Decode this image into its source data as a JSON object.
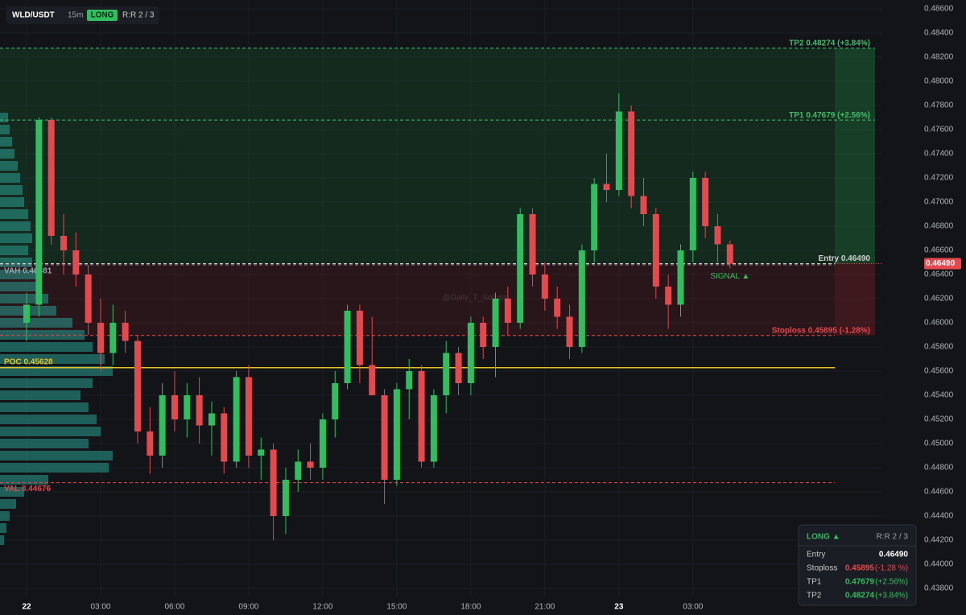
{
  "header": {
    "symbol": "WLD/USDT",
    "timeframe": "15m",
    "side": "LONG",
    "rr": "R:R 2 / 3"
  },
  "watermark": "@Daily_T_Setups",
  "panel": {
    "side": "LONG ▲",
    "rr": "R:R 2 / 3",
    "rows": [
      {
        "label": "Entry",
        "value": "0.46490"
      },
      {
        "label": "Stoploss",
        "value": "0.45895",
        "change": "(-1.28 %)"
      },
      {
        "label": "TP1",
        "value": "0.47679",
        "change": "(+2.56%)"
      },
      {
        "label": "TP2",
        "value": "0.48274",
        "change": "(+3.84%)"
      }
    ]
  },
  "chart_data": {
    "type": "candlestick",
    "up_color": "#2fbf5f",
    "down_color": "#e5484d",
    "grid": true,
    "categories": [
      "22",
      null,
      null,
      null,
      null,
      null,
      "03:00",
      null,
      null,
      null,
      null,
      null,
      "06:00",
      null,
      null,
      null,
      null,
      null,
      "09:00",
      null,
      null,
      null,
      null,
      null,
      "12:00",
      null,
      null,
      null,
      null,
      null,
      "15:00",
      null,
      null,
      null,
      null,
      null,
      "18:00",
      null,
      null,
      null,
      null,
      null,
      "21:00",
      null,
      null,
      null,
      null,
      null,
      "23",
      null,
      null,
      null,
      null,
      null,
      "03:00",
      null,
      null,
      null
    ],
    "open": [
      0.46,
      0.4615,
      0.4768,
      0.4672,
      0.466,
      0.464,
      0.46,
      0.4575,
      0.46,
      0.4585,
      0.451,
      0.449,
      0.454,
      0.452,
      0.454,
      0.4515,
      0.4525,
      0.4485,
      0.4555,
      0.449,
      0.4495,
      0.444,
      0.447,
      0.4485,
      0.448,
      0.452,
      0.455,
      0.461,
      0.4565,
      0.454,
      0.447,
      0.4545,
      0.456,
      0.4485,
      0.454,
      0.4575,
      0.455,
      0.46,
      0.458,
      0.462,
      0.46,
      0.469,
      0.464,
      0.462,
      0.4605,
      0.458,
      0.466,
      0.4715,
      0.471,
      0.4775,
      0.4705,
      0.469,
      0.463,
      0.4615,
      0.466,
      0.472,
      0.468,
      0.4665
    ],
    "high": [
      0.4625,
      0.477,
      0.477,
      0.469,
      0.4675,
      0.4648,
      0.462,
      0.4615,
      0.461,
      0.459,
      0.453,
      0.455,
      0.456,
      0.455,
      0.4555,
      0.4535,
      0.453,
      0.456,
      0.4565,
      0.4505,
      0.45,
      0.448,
      0.4495,
      0.45,
      0.4525,
      0.456,
      0.4615,
      0.4615,
      0.4605,
      0.4545,
      0.455,
      0.457,
      0.4565,
      0.4545,
      0.4585,
      0.458,
      0.4605,
      0.4605,
      0.4625,
      0.463,
      0.4695,
      0.4695,
      0.465,
      0.463,
      0.4615,
      0.4665,
      0.472,
      0.474,
      0.479,
      0.478,
      0.472,
      0.4695,
      0.464,
      0.4665,
      0.4725,
      0.4725,
      0.469,
      0.4668
    ],
    "low": [
      0.4585,
      0.4605,
      0.4665,
      0.464,
      0.463,
      0.459,
      0.456,
      0.4565,
      0.4575,
      0.45,
      0.4475,
      0.448,
      0.451,
      0.4505,
      0.45,
      0.449,
      0.4475,
      0.448,
      0.448,
      0.447,
      0.442,
      0.4425,
      0.446,
      0.447,
      0.447,
      0.4505,
      0.4545,
      0.455,
      0.454,
      0.445,
      0.4465,
      0.452,
      0.448,
      0.448,
      0.4525,
      0.454,
      0.454,
      0.457,
      0.4555,
      0.459,
      0.4595,
      0.463,
      0.461,
      0.4595,
      0.457,
      0.4575,
      0.465,
      0.47,
      0.4705,
      0.4695,
      0.468,
      0.462,
      0.4595,
      0.4605,
      0.465,
      0.467,
      0.465,
      0.4645
    ],
    "close": [
      0.4615,
      0.4768,
      0.4672,
      0.466,
      0.464,
      0.46,
      0.4575,
      0.46,
      0.4585,
      0.451,
      0.449,
      0.454,
      0.452,
      0.454,
      0.4515,
      0.4525,
      0.4485,
      0.4555,
      0.449,
      0.4495,
      0.444,
      0.447,
      0.4485,
      0.448,
      0.452,
      0.455,
      0.461,
      0.4565,
      0.454,
      0.447,
      0.4545,
      0.456,
      0.4485,
      0.454,
      0.4575,
      0.455,
      0.46,
      0.458,
      0.462,
      0.46,
      0.469,
      0.464,
      0.462,
      0.4605,
      0.458,
      0.466,
      0.4715,
      0.471,
      0.4775,
      0.4705,
      0.469,
      0.463,
      0.4615,
      0.466,
      0.472,
      0.468,
      0.4665,
      0.4649
    ],
    "ylim": [
      0.438,
      0.486
    ],
    "yticks": [
      {
        "value": 0.486,
        "label": "0.48600"
      },
      {
        "value": 0.484,
        "label": "0.48400"
      },
      {
        "value": 0.482,
        "label": "0.48200"
      },
      {
        "value": 0.48,
        "label": "0.48000"
      },
      {
        "value": 0.478,
        "label": "0.47800"
      },
      {
        "value": 0.476,
        "label": "0.47600"
      },
      {
        "value": 0.474,
        "label": "0.47400"
      },
      {
        "value": 0.472,
        "label": "0.47200"
      },
      {
        "value": 0.47,
        "label": "0.47000"
      },
      {
        "value": 0.468,
        "label": "0.46800"
      },
      {
        "value": 0.466,
        "label": "0.46600"
      },
      {
        "value": 0.464,
        "label": "0.46400"
      },
      {
        "value": 0.462,
        "label": "0.46200"
      },
      {
        "value": 0.46,
        "label": "0.46000"
      },
      {
        "value": 0.458,
        "label": "0.45800"
      },
      {
        "value": 0.456,
        "label": "0.45600"
      },
      {
        "value": 0.454,
        "label": "0.45400"
      },
      {
        "value": 0.452,
        "label": "0.45200"
      },
      {
        "value": 0.45,
        "label": "0.45000"
      },
      {
        "value": 0.448,
        "label": "0.44800"
      },
      {
        "value": 0.446,
        "label": "0.44600"
      },
      {
        "value": 0.444,
        "label": "0.44400"
      },
      {
        "value": 0.442,
        "label": "0.44200"
      },
      {
        "value": 0.44,
        "label": "0.44000"
      },
      {
        "value": 0.438,
        "label": "0.43800"
      }
    ],
    "last_price": {
      "value": 0.4649,
      "label": "0.46490"
    },
    "signal": "SIGNAL ▲",
    "zones": [
      {
        "from": 0.4649,
        "to": 0.48274,
        "color": "#1f7a3a"
      },
      {
        "from": 0.4649,
        "to": 0.45895,
        "color": "#7a1f24"
      }
    ],
    "levels": [
      {
        "label": "TP2 0.48274 (+3.84%)",
        "value": 0.48274,
        "color": "#3fbf6a",
        "style": "dashed",
        "anchor": "right"
      },
      {
        "label": "TP1 0.47679 (+2.56%)",
        "value": 0.47679,
        "color": "#3fbf6a",
        "style": "dashed",
        "anchor": "right"
      },
      {
        "label": "Entry 0.46490",
        "value": 0.4649,
        "color": "#d0d0d0",
        "style": "dashed",
        "anchor": "right"
      },
      {
        "label": "Stoploss 0.45895 (-1.28%)",
        "value": 0.45895,
        "color": "#e5484d",
        "style": "dashed",
        "anchor": "right"
      },
      {
        "label": "VAH 0.46481",
        "value": 0.46481,
        "color": "#9aa0a6",
        "style": "dashed",
        "anchor": "left"
      },
      {
        "label": "POC 0.45628",
        "value": 0.45628,
        "color": "#e6c229",
        "style": "solid",
        "anchor": "left"
      },
      {
        "label": "VAL 0.44676",
        "value": 0.44676,
        "color": "#e5484d",
        "style": "dashed",
        "anchor": "left"
      }
    ],
    "volume_profile": {
      "color": "#2a9d8f",
      "prices": [
        0.442,
        0.443,
        0.444,
        0.445,
        0.446,
        0.447,
        0.448,
        0.449,
        0.45,
        0.451,
        0.452,
        0.453,
        0.454,
        0.455,
        0.456,
        0.457,
        0.458,
        0.459,
        0.46,
        0.461,
        0.462,
        0.463,
        0.464,
        0.465,
        0.466,
        0.467,
        0.468,
        0.469,
        0.47,
        0.471,
        0.472,
        0.473,
        0.474,
        0.475,
        0.476,
        0.477
      ],
      "volumes": [
        5,
        8,
        12,
        20,
        30,
        60,
        135,
        140,
        110,
        125,
        120,
        110,
        100,
        115,
        140,
        130,
        115,
        105,
        90,
        70,
        60,
        50,
        45,
        40,
        35,
        40,
        38,
        35,
        30,
        28,
        25,
        22,
        18,
        15,
        12,
        10
      ]
    }
  }
}
